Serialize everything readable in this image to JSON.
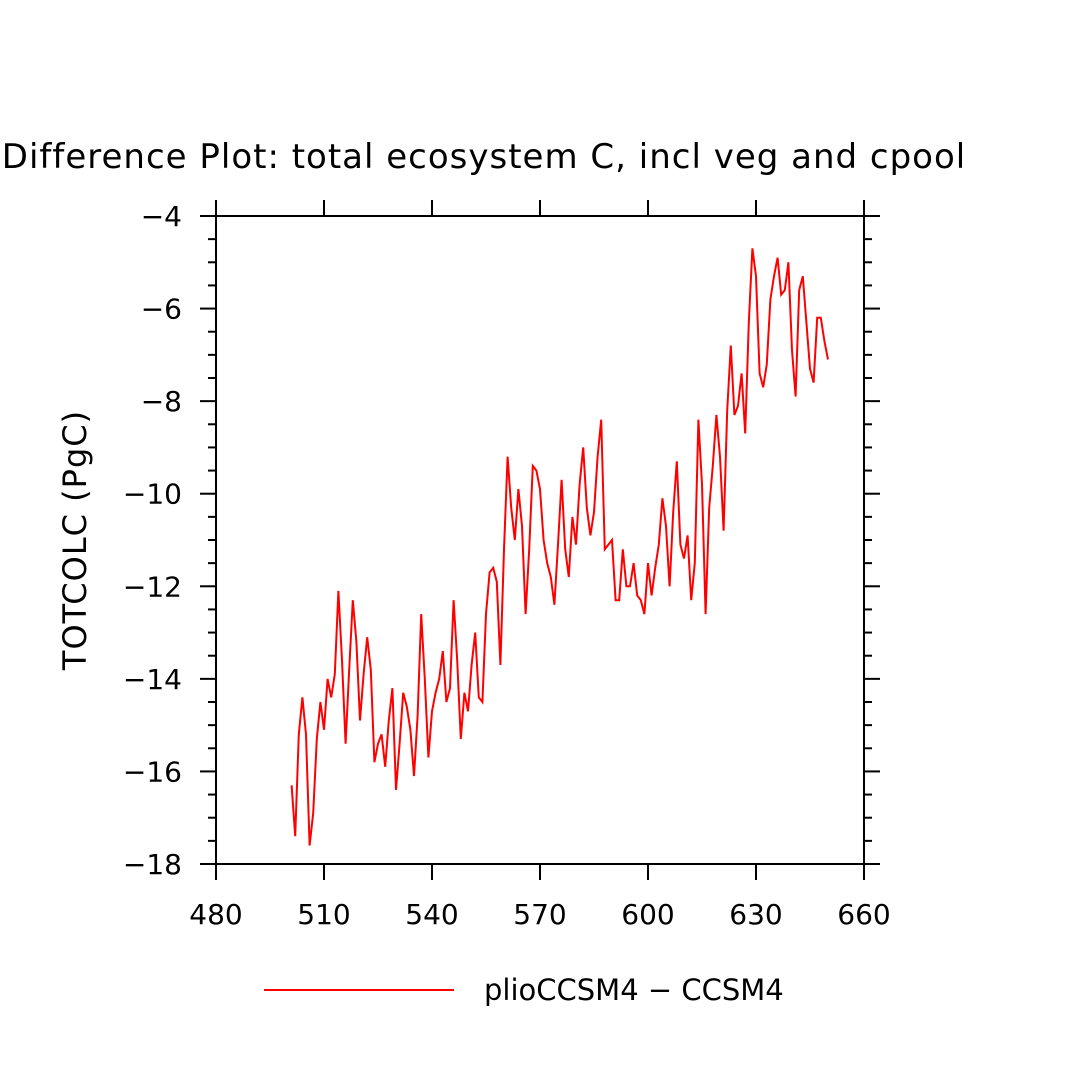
{
  "chart_data": {
    "type": "line",
    "title": "Difference Plot: total ecosystem C, incl veg and cpool",
    "xlabel": "",
    "ylabel": "TOTCOLC  (PgC)",
    "xlim": [
      480,
      660
    ],
    "ylim": [
      -18,
      -4
    ],
    "xticks": [
      480,
      510,
      540,
      570,
      600,
      630,
      660
    ],
    "yticks": [
      -4,
      -6,
      -8,
      -10,
      -12,
      -14,
      -16,
      -18
    ],
    "xtick_labels": [
      "480",
      "510",
      "540",
      "570",
      "600",
      "630",
      "660"
    ],
    "ytick_labels": [
      "−4",
      "−6",
      "−8",
      "−10",
      "−12",
      "−14",
      "−16",
      "−18"
    ],
    "legend_position": "bottom-center",
    "series": [
      {
        "name": "plioCCSM4 − CCSM4",
        "color": "#ff0000",
        "x": [
          501,
          502,
          503,
          504,
          505,
          506,
          507,
          508,
          509,
          510,
          511,
          512,
          513,
          514,
          515,
          516,
          517,
          518,
          519,
          520,
          521,
          522,
          523,
          524,
          525,
          526,
          527,
          528,
          529,
          530,
          531,
          532,
          533,
          534,
          535,
          536,
          537,
          538,
          539,
          540,
          541,
          542,
          543,
          544,
          545,
          546,
          547,
          548,
          549,
          550,
          551,
          552,
          553,
          554,
          555,
          556,
          557,
          558,
          559,
          560,
          561,
          562,
          563,
          564,
          565,
          566,
          567,
          568,
          569,
          570,
          571,
          572,
          573,
          574,
          575,
          576,
          577,
          578,
          579,
          580,
          581,
          582,
          583,
          584,
          585,
          586,
          587,
          588,
          589,
          590,
          591,
          592,
          593,
          594,
          595,
          596,
          597,
          598,
          599,
          600,
          601,
          602,
          603,
          604,
          605,
          606,
          607,
          608,
          609,
          610,
          611,
          612,
          613,
          614,
          615,
          616,
          617,
          618,
          619,
          620,
          621,
          622,
          623,
          624,
          625,
          626,
          627,
          628,
          629,
          630,
          631,
          632,
          633,
          634,
          635,
          636,
          637,
          638,
          639,
          640,
          641,
          642,
          643,
          644,
          645,
          646,
          647,
          648,
          649,
          650
        ],
        "values": [
          -16.3,
          -17.4,
          -15.2,
          -14.4,
          -15.2,
          -17.6,
          -16.9,
          -15.3,
          -14.5,
          -15.1,
          -14.0,
          -14.4,
          -13.9,
          -12.1,
          -13.6,
          -15.4,
          -13.8,
          -12.3,
          -13.2,
          -14.9,
          -13.9,
          -13.1,
          -13.8,
          -15.8,
          -15.4,
          -15.2,
          -15.9,
          -14.9,
          -14.2,
          -16.4,
          -15.4,
          -14.3,
          -14.6,
          -15.1,
          -16.1,
          -14.8,
          -12.6,
          -14.0,
          -15.7,
          -14.7,
          -14.3,
          -14.0,
          -13.4,
          -14.5,
          -14.2,
          -12.3,
          -13.6,
          -15.3,
          -14.3,
          -14.7,
          -13.7,
          -13.0,
          -14.4,
          -14.5,
          -12.6,
          -11.7,
          -11.6,
          -11.9,
          -13.7,
          -11.2,
          -9.2,
          -10.3,
          -11.0,
          -9.9,
          -10.7,
          -12.6,
          -11.2,
          -9.4,
          -9.5,
          -9.9,
          -11.0,
          -11.5,
          -11.8,
          -12.4,
          -11.1,
          -9.7,
          -11.2,
          -11.8,
          -10.5,
          -11.1,
          -9.8,
          -9.0,
          -10.3,
          -10.9,
          -10.4,
          -9.2,
          -8.4,
          -11.2,
          -11.1,
          -11.0,
          -12.3,
          -12.3,
          -11.2,
          -12.0,
          -12.0,
          -11.5,
          -12.2,
          -12.3,
          -12.6,
          -11.5,
          -12.2,
          -11.6,
          -11.1,
          -10.1,
          -10.7,
          -12.0,
          -10.4,
          -9.3,
          -11.1,
          -11.4,
          -10.9,
          -12.3,
          -11.5,
          -8.4,
          -9.8,
          -12.6,
          -10.3,
          -9.4,
          -8.3,
          -9.2,
          -10.8,
          -8.2,
          -6.8,
          -8.3,
          -8.1,
          -7.4,
          -8.7,
          -6.3,
          -4.7,
          -5.3,
          -7.4,
          -7.7,
          -7.2,
          -5.8,
          -5.3,
          -4.9,
          -5.7,
          -5.6,
          -5.0,
          -6.9,
          -7.9,
          -5.6,
          -5.3,
          -6.3,
          -7.3,
          -7.6,
          -6.2,
          -6.2,
          -6.7,
          -7.1
        ]
      }
    ]
  }
}
